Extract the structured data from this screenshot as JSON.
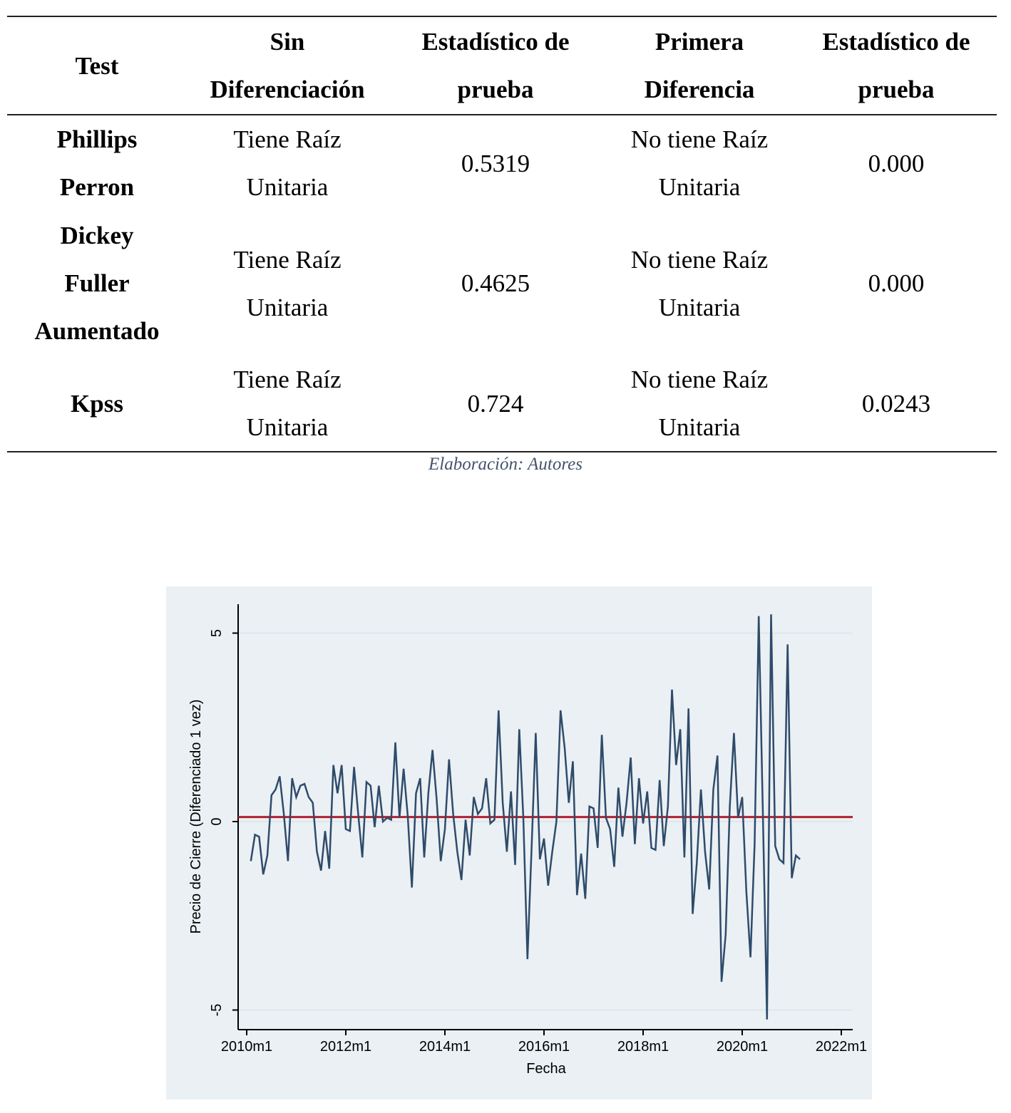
{
  "table": {
    "headers": [
      [
        "Test"
      ],
      [
        "Sin",
        "Diferenciación"
      ],
      [
        "Estadístico de",
        "prueba"
      ],
      [
        "Primera",
        "Diferencia"
      ],
      [
        "Estadístico de",
        "prueba"
      ]
    ],
    "rows": [
      {
        "test": [
          "Phillips",
          "Perron"
        ],
        "sin_dif": [
          "Tiene Raíz",
          "Unitaria"
        ],
        "stat1": "0.5319",
        "primera_dif": [
          "No tiene Raíz",
          "Unitaria"
        ],
        "stat2": "0.000"
      },
      {
        "test": [
          "Dickey",
          "Fuller",
          "Aumentado"
        ],
        "sin_dif": [
          "Tiene Raíz",
          "Unitaria"
        ],
        "stat1": "0.4625",
        "primera_dif": [
          "No tiene Raíz",
          "Unitaria"
        ],
        "stat2": "0.000"
      },
      {
        "test": [
          "Kpss"
        ],
        "sin_dif": [
          "Tiene Raíz",
          "Unitaria"
        ],
        "stat1": "0.724",
        "primera_dif": [
          "No tiene Raíz",
          "Unitaria"
        ],
        "stat2": "0.0243"
      }
    ]
  },
  "caption": "Elaboración: Autores",
  "chart_data": {
    "type": "line",
    "xlabel": "Fecha",
    "ylabel": "Precio de Cierre (Diferenciado 1 vez)",
    "x_ticks": [
      "2010m1",
      "2012m1",
      "2014m1",
      "2016m1",
      "2018m1",
      "2020m1",
      "2022m1"
    ],
    "y_ticks": [
      "-5",
      "0",
      "5"
    ],
    "xlim": [
      "2010m1",
      "2022m1"
    ],
    "ylim": [
      -5.3,
      5.6
    ],
    "grid": "horizontal at y ticks",
    "colors": {
      "line": "#2f4b6b",
      "reference": "#b2202f",
      "grid": "#dfe7ec"
    },
    "reference_line": {
      "y": 0.12,
      "label": ""
    },
    "series": [
      {
        "x_start": "2010m2",
        "frequency": "monthly",
        "values": [
          -1.05,
          -0.35,
          -0.4,
          -1.4,
          -0.9,
          0.7,
          0.85,
          1.2,
          0.2,
          -1.05,
          1.15,
          0.65,
          0.95,
          1.0,
          0.65,
          0.5,
          -0.8,
          -1.3,
          -0.25,
          -1.25,
          1.5,
          0.75,
          1.5,
          -0.2,
          -0.25,
          1.45,
          0.2,
          -0.95,
          1.05,
          0.95,
          -0.15,
          0.95,
          0.0,
          0.1,
          0.05,
          2.1,
          0.1,
          1.4,
          0.15,
          -1.75,
          0.75,
          1.15,
          -0.95,
          0.75,
          1.9,
          0.6,
          -1.05,
          -0.2,
          1.65,
          0.2,
          -0.8,
          -1.55,
          0.05,
          -0.9,
          0.65,
          0.2,
          0.35,
          1.15,
          -0.05,
          0.05,
          2.95,
          0.5,
          -0.8,
          0.8,
          -1.15,
          2.45,
          0.1,
          -3.65,
          -0.7,
          2.35,
          -1.0,
          -0.45,
          -1.7,
          -0.8,
          0.0,
          2.95,
          1.95,
          0.5,
          1.6,
          -1.95,
          -0.85,
          -2.05,
          0.4,
          0.35,
          -0.7,
          2.3,
          0.1,
          -0.2,
          -1.2,
          0.9,
          -0.4,
          0.5,
          1.7,
          -0.6,
          1.15,
          -0.05,
          0.8,
          -0.7,
          -0.75,
          1.1,
          -0.65,
          0.4,
          3.5,
          1.5,
          2.45,
          -0.95,
          3.0,
          -2.45,
          -1.1,
          0.85,
          -0.8,
          -1.8,
          0.85,
          1.75,
          -4.25,
          -3.0,
          0.4,
          2.35,
          0.1,
          0.65,
          -1.85,
          -3.6,
          -0.6,
          5.45,
          0.2,
          -5.25,
          5.5,
          -0.65,
          -1.0,
          -1.1,
          4.7,
          -1.5,
          -0.9,
          -1.0
        ]
      }
    ]
  }
}
